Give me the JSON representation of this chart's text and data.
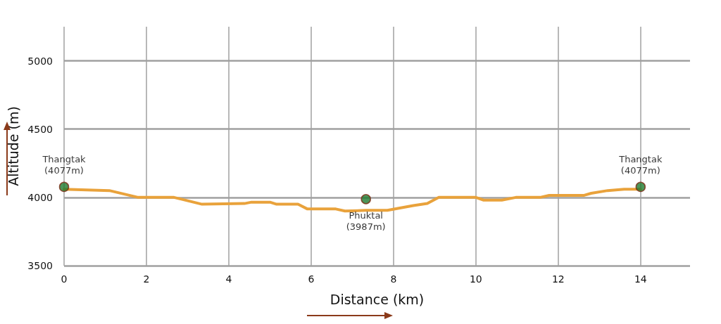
{
  "chart_data": {
    "type": "line",
    "xlabel": "Distance (km)",
    "ylabel": "Altitude (m)",
    "xlim": [
      0,
      15.2
    ],
    "xticks": [
      0,
      2,
      4,
      6,
      8,
      10,
      12,
      14
    ],
    "ylim": [
      3500,
      5250
    ],
    "yticks": [
      3500,
      4000,
      4500,
      5000
    ],
    "grid": true,
    "series": [
      {
        "color": "#e9a23b",
        "marker": "none",
        "x": [
          0,
          1.1,
          1.8,
          2.67,
          3.35,
          4.38,
          4.55,
          5.0,
          5.16,
          5.68,
          5.91,
          6.6,
          6.82,
          7.33,
          7.85,
          8.48,
          8.82,
          9.1,
          10.0,
          10.19,
          10.63,
          10.97,
          11.56,
          11.78,
          12.63,
          12.8,
          13.2,
          13.6,
          14.0
        ],
        "values": [
          4060,
          4050,
          4000,
          4000,
          3950,
          3955,
          3965,
          3965,
          3950,
          3950,
          3915,
          3915,
          3900,
          3905,
          3905,
          3940,
          3955,
          4000,
          4000,
          3980,
          3980,
          4000,
          4000,
          4015,
          4015,
          4030,
          4050,
          4060,
          4060
        ]
      },
      {
        "type": "scatter",
        "color": "#1f7a2f",
        "marker": "circle",
        "x": [
          0,
          7.33,
          14
        ],
        "values": [
          4077,
          3987,
          4077
        ],
        "value_labels": [
          "Thangtak\n(4077m)",
          "Phuktal\n(3987m)",
          "Thangtak\n(4077m)"
        ]
      }
    ]
  }
}
